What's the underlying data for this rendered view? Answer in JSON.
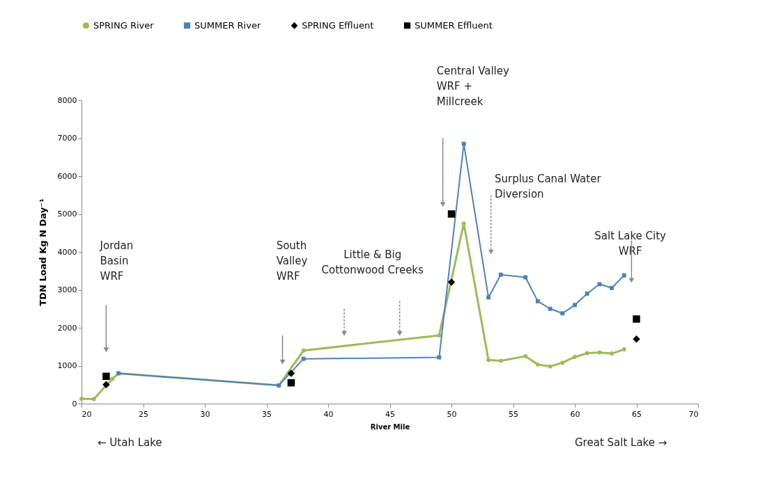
{
  "chart_data": {
    "type": "line",
    "xlabel": "River Mile",
    "ylabel": "TDN Load Kg N Day⁻¹",
    "xlim": [
      20,
      70
    ],
    "xticks": [
      20,
      25,
      30,
      35,
      40,
      45,
      50,
      55,
      60,
      65,
      70
    ],
    "ylim": [
      0,
      8000
    ],
    "yticks": [
      0,
      1000,
      2000,
      3000,
      4000,
      5000,
      6000,
      7000,
      8000
    ],
    "grid": false,
    "legend": "top",
    "series": [
      {
        "name": "SPRING River",
        "marker": "circle",
        "color": "#9bbb59",
        "x": [
          20,
          21,
          22,
          22.5,
          23,
          36,
          38,
          49,
          51,
          53,
          54,
          56,
          57,
          58,
          59,
          60,
          61,
          62,
          63,
          64
        ],
        "values": [
          130,
          120,
          480,
          650,
          800,
          480,
          1400,
          1800,
          4750,
          1150,
          1130,
          1250,
          1030,
          980,
          1080,
          1230,
          1330,
          1350,
          1320,
          1430
        ]
      },
      {
        "name": "SUMMER River",
        "marker": "square",
        "color": "#4f81bd",
        "x": [
          23,
          36,
          38,
          49,
          51,
          53,
          54,
          56,
          57,
          58,
          59,
          60,
          61,
          62,
          63,
          64
        ],
        "values": [
          800,
          480,
          1180,
          1220,
          6850,
          2800,
          3400,
          3330,
          2700,
          2500,
          2380,
          2600,
          2900,
          3150,
          3050,
          3380
        ]
      },
      {
        "name": "SPRING Effluent",
        "type": "scatter",
        "marker": "diamond",
        "color": "#000000",
        "x": [
          22,
          37,
          50,
          65
        ],
        "values": [
          500,
          800,
          3200,
          1700
        ]
      },
      {
        "name": "SUMMER Effluent",
        "type": "scatter",
        "marker": "square",
        "color": "#000000",
        "x": [
          22,
          37,
          50,
          65
        ],
        "values": [
          720,
          550,
          5000,
          2230
        ]
      }
    ],
    "annotations": [
      "Jordan\nBasin\nWRF",
      "South\nValley\nWRF",
      "Little & Big\nCottonwood Creeks",
      "Central Valley\nWRF +\nMillcreek",
      "Surplus Canal Water\nDiversion",
      "Salt Lake City\nWRF",
      "← Utah Lake",
      "Great Salt Lake →"
    ]
  }
}
